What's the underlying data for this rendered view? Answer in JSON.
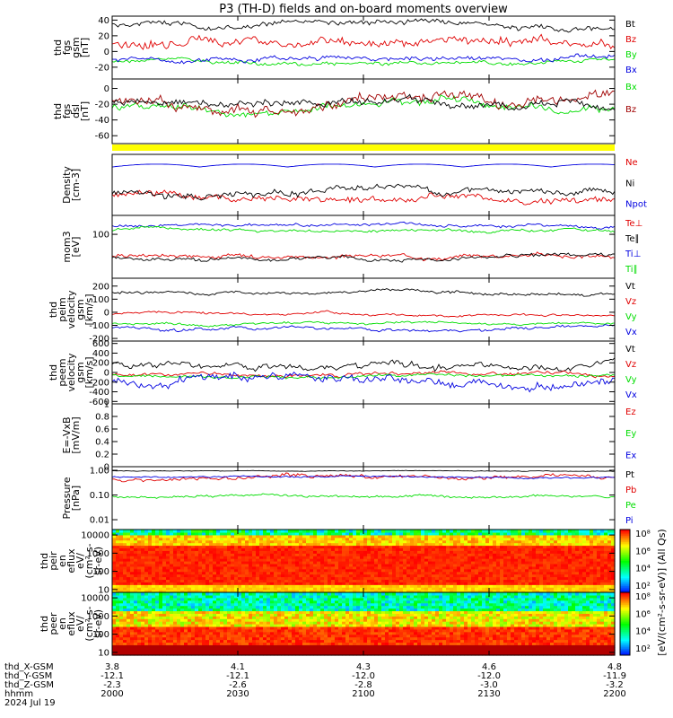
{
  "title": "P3 (TH-D) fields and on-board moments overview",
  "colors": {
    "black": "#000000",
    "red": "#e00000",
    "green": "#00dd00",
    "blue": "#0000e0",
    "darkred": "#a00000",
    "yellow": "#ffff00"
  },
  "chart_data": [
    {
      "type": "line",
      "id": "fgs_gsm",
      "ylabel": [
        "thd",
        "fgs",
        "gsm",
        "[nT]"
      ],
      "ylim": [
        -35,
        45
      ],
      "yticks": [
        -20,
        0,
        20,
        40
      ],
      "series": [
        {
          "name": "Bt",
          "color": "#000000",
          "base": 34,
          "amp": 6
        },
        {
          "name": "Bz",
          "color": "#e00000",
          "base": 12,
          "amp": 10
        },
        {
          "name": "By",
          "color": "#00dd00",
          "base": -14,
          "amp": 4
        },
        {
          "name": "Bx",
          "color": "#0000e0",
          "base": -10,
          "amp": 5
        }
      ]
    },
    {
      "type": "line",
      "id": "fgs_dsl",
      "ylabel": [
        "thd",
        "fgs",
        "dsl",
        "[nT]"
      ],
      "ylim": [
        -70,
        12
      ],
      "yticks": [
        -60,
        -40,
        -20,
        0
      ],
      "series": [
        {
          "name": "Bx",
          "color": "#00dd00",
          "base": -25,
          "amp": 8
        },
        {
          "name": "Bz",
          "color": "#a00000",
          "base": -18,
          "amp": 12
        },
        {
          "name": "",
          "color": "#000000",
          "base": -22,
          "amp": 8
        }
      ]
    },
    {
      "type": "line",
      "id": "density",
      "ylabel": [
        "Density",
        "[cm-3]"
      ],
      "log": true,
      "ylim": [
        0.05,
        30
      ],
      "yticks": [],
      "series": [
        {
          "name": "Ne",
          "color": "#e00000",
          "base": 0.35,
          "amp": 0.5
        },
        {
          "name": "Ni",
          "color": "#000000",
          "base": 0.55,
          "amp": 0.5
        },
        {
          "name": "Npot",
          "color": "#0000e0",
          "base": 8,
          "amp": 0.25
        }
      ]
    },
    {
      "type": "line",
      "id": "temp",
      "ylabel": [
        "mom3",
        "[eV]"
      ],
      "log": true,
      "ylim": [
        4,
        400
      ],
      "yticks": [
        100
      ],
      "series": [
        {
          "name": "Te⊥",
          "color": "#e00000",
          "base": 22,
          "amp": 0.2
        },
        {
          "name": "Te∥",
          "color": "#000000",
          "base": 17,
          "amp": 0.2
        },
        {
          "name": "Ti⊥",
          "color": "#0000e0",
          "base": 180,
          "amp": 0.15
        },
        {
          "name": "Ti∥",
          "color": "#00dd00",
          "base": 140,
          "amp": 0.15
        }
      ]
    },
    {
      "type": "line",
      "id": "peim_v",
      "ylabel": [
        "thd",
        "peim",
        "velocity",
        "gsm",
        "[km/s]"
      ],
      "ylim": [
        -220,
        260
      ],
      "yticks": [
        -200,
        -100,
        0,
        100,
        200
      ],
      "series": [
        {
          "name": "Vt",
          "color": "#000000",
          "base": 150,
          "amp": 20
        },
        {
          "name": "Vz",
          "color": "#e00000",
          "base": -20,
          "amp": 15
        },
        {
          "name": "Vy",
          "color": "#00dd00",
          "base": -90,
          "amp": 15
        },
        {
          "name": "Vx",
          "color": "#0000e0",
          "base": -120,
          "amp": 20
        }
      ]
    },
    {
      "type": "line",
      "id": "peem_v",
      "ylabel": [
        "thd",
        "peem",
        "velocity",
        "gsm",
        "[km/s]"
      ],
      "ylim": [
        -650,
        650
      ],
      "yticks": [
        -600,
        -400,
        -200,
        0,
        200,
        400,
        600
      ],
      "series": [
        {
          "name": "Vt",
          "color": "#000000",
          "base": 180,
          "amp": 120
        },
        {
          "name": "Vz",
          "color": "#e00000",
          "base": -40,
          "amp": 60
        },
        {
          "name": "Vy",
          "color": "#00dd00",
          "base": -90,
          "amp": 50
        },
        {
          "name": "Vx",
          "color": "#0000e0",
          "base": -150,
          "amp": 150
        }
      ]
    },
    {
      "type": "line",
      "id": "efield",
      "ylabel": [
        "E=-VxB",
        "[mV/m]"
      ],
      "ylim": [
        0,
        1.0
      ],
      "yticks": [
        0,
        0.2,
        0.4,
        0.6,
        0.8,
        1.0
      ],
      "series": [
        {
          "name": "Ez",
          "color": "#e00000",
          "base": 0,
          "amp": 0
        },
        {
          "name": "Ey",
          "color": "#00dd00",
          "base": 0,
          "amp": 0
        },
        {
          "name": "Ex",
          "color": "#0000e0",
          "base": 0,
          "amp": 0
        }
      ]
    },
    {
      "type": "line",
      "id": "pressure",
      "ylabel": [
        "Pressure",
        "[nPa]"
      ],
      "log": true,
      "ylim": [
        0.004,
        1.4
      ],
      "yticks": [
        0.01,
        0.1,
        1
      ],
      "ytick_labels": [
        "0.01",
        "0.10",
        "1.00"
      ],
      "series": [
        {
          "name": "Pt",
          "color": "#000000",
          "base": 0.95,
          "amp": 0.04
        },
        {
          "name": "Pb",
          "color": "#e00000",
          "base": 0.42,
          "amp": 0.25
        },
        {
          "name": "Pe",
          "color": "#00dd00",
          "base": 0.09,
          "amp": 0.15
        },
        {
          "name": "Pi",
          "color": "#0000e0",
          "base": 0.55,
          "amp": 0.1
        }
      ]
    },
    {
      "type": "heatmap",
      "id": "peir",
      "ylabel": [
        "thd",
        "peir",
        "en",
        "eflux",
        "eV/",
        "(cm^2-s-",
        "sr-eV)"
      ],
      "log": true,
      "ylim": [
        7,
        20000
      ],
      "yticks": [
        10,
        100,
        1000,
        10000
      ]
    },
    {
      "type": "heatmap",
      "id": "peer",
      "ylabel": [
        "thd",
        "peer",
        "en",
        "eflux",
        "eV/",
        "(cm^2-s-",
        "sr-eV)"
      ],
      "log": true,
      "ylim": [
        7,
        20000
      ],
      "yticks": [
        10,
        100,
        1000,
        10000
      ]
    }
  ],
  "colorbar": {
    "label": "[eV/(cm^2-s-sr-eV)] (All Qs)",
    "ticks_top": [
      "10^8",
      "10^6",
      "10^4",
      "10^2"
    ],
    "ticks_bottom": [
      "10^8",
      "10^6",
      "10^4",
      "10^2"
    ]
  },
  "xaxis": {
    "rows": [
      {
        "label": "thd_X-GSM",
        "values": [
          "3.8",
          "4.1",
          "4.3",
          "4.6",
          "4.8"
        ]
      },
      {
        "label": "thd_Y-GSM",
        "values": [
          "-12.1",
          "-12.1",
          "-12.0",
          "-12.0",
          "-11.9"
        ]
      },
      {
        "label": "thd_Z-GSM",
        "values": [
          "-2.3",
          "-2.6",
          "-2.8",
          "-3.0",
          "-3.2"
        ]
      },
      {
        "label": "hhmm",
        "values": [
          "2000",
          "2030",
          "2100",
          "2130",
          "2200"
        ]
      }
    ],
    "date": "2024 Jul 19"
  }
}
